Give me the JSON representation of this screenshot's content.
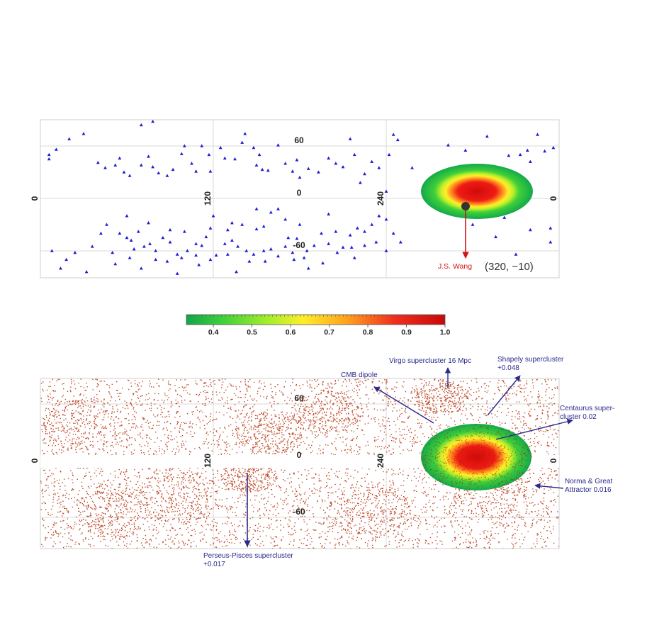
{
  "chart_data": [
    {
      "type": "scatter",
      "title": "",
      "x_ticks": [
        "0",
        "120",
        "240",
        "0"
      ],
      "y_ticks": [
        "60",
        "0",
        "-60"
      ],
      "xlim": [
        0,
        360
      ],
      "ylim": [
        -90,
        90
      ],
      "grid": true,
      "marker": "triangle",
      "marker_color": "#1d1dd6",
      "points": [
        [
          70,
          84
        ],
        [
          78,
          88
        ],
        [
          100,
          60
        ],
        [
          30,
          74
        ],
        [
          20,
          68
        ],
        [
          11,
          56
        ],
        [
          6,
          50
        ],
        [
          6,
          45
        ],
        [
          40,
          41
        ],
        [
          45,
          35
        ],
        [
          52,
          38
        ],
        [
          55,
          46
        ],
        [
          58,
          30
        ],
        [
          62,
          26
        ],
        [
          70,
          38
        ],
        [
          75,
          48
        ],
        [
          78,
          36
        ],
        [
          82,
          29
        ],
        [
          88,
          26
        ],
        [
          92,
          33
        ],
        [
          98,
          51
        ],
        [
          105,
          40
        ],
        [
          108,
          31
        ],
        [
          112,
          60
        ],
        [
          117,
          50
        ],
        [
          118,
          31
        ],
        [
          125,
          58
        ],
        [
          128,
          46
        ],
        [
          135,
          45
        ],
        [
          140,
          64
        ],
        [
          142,
          74
        ],
        [
          148,
          58
        ],
        [
          152,
          50
        ],
        [
          150,
          38
        ],
        [
          154,
          33
        ],
        [
          158,
          32
        ],
        [
          165,
          61
        ],
        [
          170,
          40
        ],
        [
          175,
          31
        ],
        [
          180,
          24
        ],
        [
          178,
          44
        ],
        [
          186,
          34
        ],
        [
          193,
          30
        ],
        [
          200,
          46
        ],
        [
          205,
          40
        ],
        [
          210,
          36
        ],
        [
          215,
          68
        ],
        [
          218,
          50
        ],
        [
          222,
          18
        ],
        [
          225,
          28
        ],
        [
          230,
          42
        ],
        [
          235,
          35
        ],
        [
          240,
          8
        ],
        [
          242,
          50
        ],
        [
          245,
          73
        ],
        [
          248,
          67
        ],
        [
          283,
          61
        ],
        [
          292,
          31
        ],
        [
          298,
          37
        ],
        [
          305,
          19
        ],
        [
          316,
          16
        ],
        [
          325,
          49
        ],
        [
          333,
          50
        ],
        [
          338,
          55
        ],
        [
          345,
          73
        ],
        [
          350,
          54
        ],
        [
          356,
          58
        ],
        [
          340,
          42
        ],
        [
          295,
          55
        ],
        [
          310,
          71
        ],
        [
          258,
          35
        ],
        [
          46,
          -30
        ],
        [
          55,
          -40
        ],
        [
          60,
          -45
        ],
        [
          63,
          -48
        ],
        [
          65,
          -58
        ],
        [
          72,
          -55
        ],
        [
          76,
          -52
        ],
        [
          80,
          -60
        ],
        [
          85,
          -45
        ],
        [
          90,
          -50
        ],
        [
          95,
          -64
        ],
        [
          98,
          -68
        ],
        [
          102,
          -60
        ],
        [
          108,
          -65
        ],
        [
          112,
          -54
        ],
        [
          118,
          -70
        ],
        [
          122,
          -65
        ],
        [
          128,
          -52
        ],
        [
          133,
          -48
        ],
        [
          137,
          -55
        ],
        [
          143,
          -60
        ],
        [
          148,
          -64
        ],
        [
          155,
          -60
        ],
        [
          160,
          -58
        ],
        [
          165,
          -66
        ],
        [
          170,
          -55
        ],
        [
          175,
          -62
        ],
        [
          178,
          -46
        ],
        [
          185,
          -60
        ],
        [
          190,
          -54
        ],
        [
          195,
          -40
        ],
        [
          200,
          -52
        ],
        [
          205,
          -38
        ],
        [
          210,
          -56
        ],
        [
          215,
          -42
        ],
        [
          218,
          -68
        ],
        [
          225,
          -38
        ],
        [
          230,
          -30
        ],
        [
          235,
          -20
        ],
        [
          240,
          -24
        ],
        [
          245,
          -40
        ],
        [
          250,
          -50
        ],
        [
          150,
          -12
        ],
        [
          160,
          -16
        ],
        [
          170,
          -24
        ],
        [
          155,
          -32
        ],
        [
          140,
          -30
        ],
        [
          130,
          -36
        ],
        [
          115,
          -44
        ],
        [
          118,
          -34
        ],
        [
          50,
          -62
        ],
        [
          68,
          -38
        ],
        [
          60,
          -20
        ],
        [
          75,
          -28
        ],
        [
          90,
          -36
        ],
        [
          130,
          -64
        ],
        [
          145,
          -72
        ],
        [
          100,
          -38
        ],
        [
          108,
          -52
        ],
        [
          183,
          -68
        ],
        [
          176,
          -70
        ],
        [
          172,
          -45
        ],
        [
          180,
          -30
        ],
        [
          200,
          -18
        ],
        [
          220,
          -34
        ],
        [
          233,
          -50
        ],
        [
          240,
          -60
        ],
        [
          165,
          -12
        ],
        [
          150,
          -35
        ],
        [
          120,
          -20
        ],
        [
          133,
          -28
        ],
        [
          88,
          -72
        ],
        [
          95,
          -86
        ],
        [
          70,
          -80
        ],
        [
          42,
          -40
        ],
        [
          36,
          -55
        ],
        [
          52,
          -75
        ],
        [
          24,
          -62
        ],
        [
          18,
          -70
        ],
        [
          32,
          -84
        ],
        [
          14,
          -80
        ],
        [
          8,
          -60
        ],
        [
          225,
          -54
        ],
        [
          206,
          -62
        ],
        [
          216,
          -56
        ],
        [
          196,
          -74
        ],
        [
          186,
          -80
        ],
        [
          156,
          -72
        ],
        [
          136,
          -84
        ],
        [
          110,
          -76
        ],
        [
          80,
          -70
        ],
        [
          62,
          -68
        ],
        [
          354,
          -50
        ],
        [
          340,
          -36
        ],
        [
          322,
          -22
        ],
        [
          300,
          -30
        ],
        [
          316,
          -44
        ],
        [
          330,
          -64
        ],
        [
          354,
          -34
        ]
      ],
      "colorbar": {
        "ticks": [
          "0.4",
          "0.5",
          "0.6",
          "0.7",
          "0.8",
          "0.9",
          "1.0"
        ],
        "range": [
          0.33,
          1.0
        ],
        "colors": [
          "#11a64a",
          "#3fd03a",
          "#a7ee2a",
          "#ffee2a",
          "#ffa21e",
          "#f0311c",
          "#c80808"
        ]
      },
      "annotations": [
        {
          "text": "J.S. Wang",
          "coords": "(320, −10)",
          "l": 320,
          "b": -10,
          "color": "#d41414"
        }
      ]
    },
    {
      "type": "scatter",
      "title": "",
      "x_ticks": [
        "0",
        "120",
        "240",
        "0"
      ],
      "y_ticks": [
        "60",
        "0",
        "-60"
      ],
      "xlim": [
        0,
        360
      ],
      "ylim": [
        -90,
        90
      ],
      "marker": "dot",
      "marker_color": "#b52b06",
      "annotations": [
        {
          "text": "Virgo  supercluster 16 Mpc"
        },
        {
          "text": "Shapely supercluster",
          "text2": "+0.048"
        },
        {
          "text": "CMB dipole"
        },
        {
          "text": "Centaurus super-",
          "text2": "cluster 0.02"
        },
        {
          "text": "Norma & Great",
          "text2": "Attractor 0.016"
        },
        {
          "text": "Perseus-Pisces supercluster",
          "text2": "+0.017"
        }
      ]
    }
  ]
}
